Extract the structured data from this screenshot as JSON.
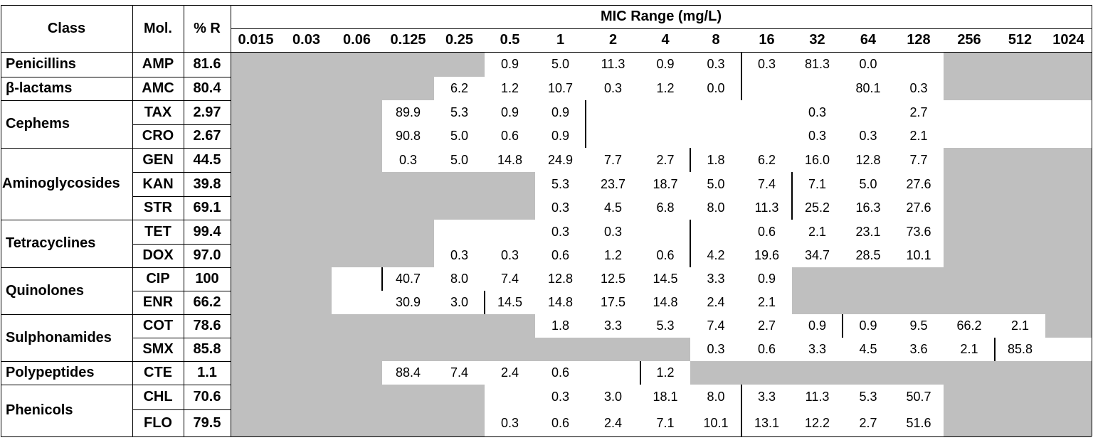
{
  "table": {
    "headers": {
      "class": "Class",
      "mol": "Mol.",
      "pct_r": "% R",
      "mic_range": "MIC Range (mg/L)"
    },
    "concentrations": [
      "0.015",
      "0.03",
      "0.06",
      "0.125",
      "0.25",
      "0.5",
      "1",
      "2",
      "4",
      "8",
      "16",
      "32",
      "64",
      "128",
      "256",
      "512",
      "1024"
    ],
    "classes": [
      {
        "label": "Penicillins",
        "rows": [
          0
        ]
      },
      {
        "label": "β-lactams",
        "rows": [
          1
        ]
      },
      {
        "label": "Cephems",
        "rows": [
          2,
          3
        ]
      },
      {
        "label": "Aminoglycosides",
        "rows": [
          4,
          5,
          6
        ]
      },
      {
        "label": "Tetracyclines",
        "rows": [
          7,
          8
        ]
      },
      {
        "label": "Quinolones",
        "rows": [
          9,
          10
        ]
      },
      {
        "label": "Sulphonamides",
        "rows": [
          11,
          12
        ]
      },
      {
        "label": "Polypeptides",
        "rows": [
          13
        ]
      },
      {
        "label": "Phenicols",
        "rows": [
          14,
          15
        ]
      }
    ],
    "rows": [
      {
        "mol": "AMP",
        "pct_r": "81.6",
        "tested": [
          5,
          13
        ],
        "breakpoint": 10,
        "values": {
          "5": "0.9",
          "6": "5.0",
          "7": "11.3",
          "8": "0.9",
          "9": "0.3",
          "10": "0.3",
          "11": "81.3",
          "12": "0.0"
        }
      },
      {
        "mol": "AMC",
        "pct_r": "80.4",
        "tested": [
          4,
          13
        ],
        "breakpoint": 10,
        "values": {
          "4": "6.2",
          "5": "1.2",
          "6": "10.7",
          "7": "0.3",
          "8": "1.2",
          "9": "0.0",
          "12": "80.1",
          "13": "0.3"
        }
      },
      {
        "mol": "TAX",
        "pct_r": "2.97",
        "tested": [
          3,
          16
        ],
        "breakpoint": 7,
        "values": {
          "3": "89.9",
          "4": "5.3",
          "5": "0.9",
          "6": "0.9",
          "11": "0.3",
          "13": "2.7"
        }
      },
      {
        "mol": "CRO",
        "pct_r": "2.67",
        "tested": [
          3,
          16
        ],
        "breakpoint": 7,
        "values": {
          "3": "90.8",
          "4": "5.0",
          "5": "0.6",
          "6": "0.9",
          "11": "0.3",
          "12": "0.3",
          "13": "2.1"
        }
      },
      {
        "mol": "GEN",
        "pct_r": "44.5",
        "tested": [
          3,
          13
        ],
        "breakpoint": 9,
        "values": {
          "3": "0.3",
          "4": "5.0",
          "5": "14.8",
          "6": "24.9",
          "7": "7.7",
          "8": "2.7",
          "9": "1.8",
          "10": "6.2",
          "11": "16.0",
          "12": "12.8",
          "13": "7.7"
        }
      },
      {
        "mol": "KAN",
        "pct_r": "39.8",
        "tested": [
          6,
          13
        ],
        "breakpoint": 11,
        "values": {
          "6": "5.3",
          "7": "23.7",
          "8": "18.7",
          "9": "5.0",
          "10": "7.4",
          "11": "7.1",
          "12": "5.0",
          "13": "27.6"
        }
      },
      {
        "mol": "STR",
        "pct_r": "69.1",
        "tested": [
          6,
          13
        ],
        "breakpoint": 11,
        "values": {
          "6": "0.3",
          "7": "4.5",
          "8": "6.8",
          "9": "8.0",
          "10": "11.3",
          "11": "25.2",
          "12": "16.3",
          "13": "27.6"
        }
      },
      {
        "mol": "TET",
        "pct_r": "99.4",
        "tested": [
          4,
          13
        ],
        "breakpoint": 9,
        "values": {
          "6": "0.3",
          "7": "0.3",
          "10": "0.6",
          "11": "2.1",
          "12": "23.1",
          "13": "73.6"
        }
      },
      {
        "mol": "DOX",
        "pct_r": "97.0",
        "tested": [
          4,
          13
        ],
        "breakpoint": 9,
        "values": {
          "4": "0.3",
          "5": "0.3",
          "6": "0.6",
          "7": "1.2",
          "8": "0.6",
          "9": "4.2",
          "10": "19.6",
          "11": "34.7",
          "12": "28.5",
          "13": "10.1"
        }
      },
      {
        "mol": "CIP",
        "pct_r": "100",
        "tested": [
          2,
          10
        ],
        "breakpoint": 3,
        "values": {
          "3": "40.7",
          "4": "8.0",
          "5": "7.4",
          "6": "12.8",
          "7": "12.5",
          "8": "14.5",
          "9": "3.3",
          "10": "0.9"
        }
      },
      {
        "mol": "ENR",
        "pct_r": "66.2",
        "tested": [
          2,
          10
        ],
        "breakpoint": 5,
        "values": {
          "3": "30.9",
          "4": "3.0",
          "5": "14.5",
          "6": "14.8",
          "7": "17.5",
          "8": "14.8",
          "9": "2.4",
          "10": "2.1"
        }
      },
      {
        "mol": "COT",
        "pct_r": "78.6",
        "tested": [
          6,
          15
        ],
        "breakpoint": 12,
        "values": {
          "6": "1.8",
          "7": "3.3",
          "8": "5.3",
          "9": "7.4",
          "10": "2.7",
          "11": "0.9",
          "12": "0.9",
          "13": "9.5",
          "14": "66.2",
          "15": "2.1"
        }
      },
      {
        "mol": "SMX",
        "pct_r": "85.8",
        "tested": [
          9,
          16
        ],
        "breakpoint": 15,
        "values": {
          "9": "0.3",
          "10": "0.6",
          "11": "3.3",
          "12": "4.5",
          "13": "3.6",
          "14": "2.1",
          "15": "85.8"
        }
      },
      {
        "mol": "CTE",
        "pct_r": "1.1",
        "tested": [
          3,
          8
        ],
        "breakpoint": 8,
        "values": {
          "3": "88.4",
          "4": "7.4",
          "5": "2.4",
          "6": "0.6",
          "8": "1.2"
        }
      },
      {
        "mol": "CHL",
        "pct_r": "70.6",
        "tested": [
          5,
          13
        ],
        "breakpoint": 10,
        "values": {
          "6": "0.3",
          "7": "3.0",
          "8": "18.1",
          "9": "8.0",
          "10": "3.3",
          "11": "11.3",
          "12": "5.3",
          "13": "50.7"
        }
      },
      {
        "mol": "FLO",
        "pct_r": "79.5",
        "tested": [
          5,
          13
        ],
        "breakpoint": 10,
        "values": {
          "5": "0.3",
          "6": "0.6",
          "7": "2.4",
          "8": "7.1",
          "9": "10.1",
          "10": "13.1",
          "11": "12.2",
          "12": "2.7",
          "13": "51.6"
        }
      }
    ]
  },
  "colors": {
    "untested": "#bfbfbf",
    "border": "#000000",
    "background": "#ffffff"
  }
}
